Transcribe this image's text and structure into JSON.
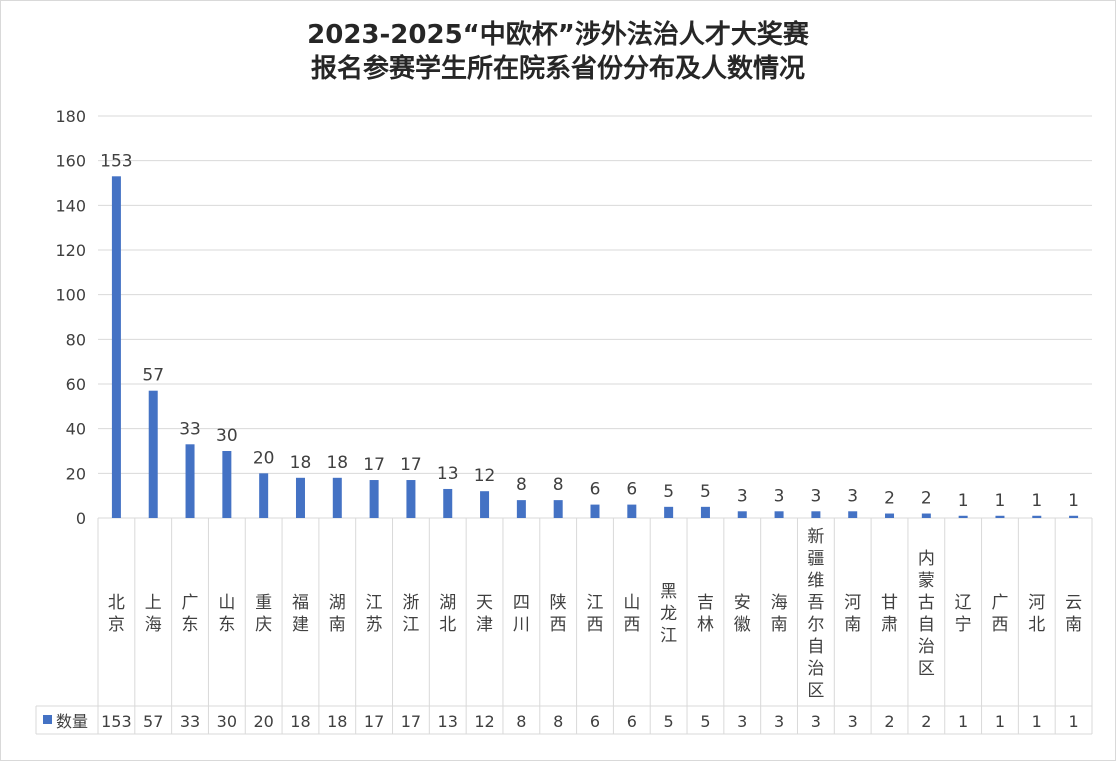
{
  "chart_data": {
    "type": "bar",
    "title": "2023-2025“中欧杯”涉外法治人才大奖赛",
    "subtitle": "报名参赛学生所在院系省份分布及人数情况",
    "categories": [
      "北京",
      "上海",
      "广东",
      "山东",
      "重庆",
      "福建",
      "湖南",
      "江苏",
      "浙江",
      "湖北",
      "天津",
      "四川",
      "陕西",
      "江西",
      "山西",
      "黑龙江",
      "吉林",
      "安徽",
      "海南",
      "新疆维吾尔自治区",
      "河南",
      "甘肃",
      "内蒙古自治区",
      "辽宁",
      "广西",
      "河北",
      "云南"
    ],
    "series": [
      {
        "name": "数量",
        "values": [
          153,
          57,
          33,
          30,
          20,
          18,
          18,
          17,
          17,
          13,
          12,
          8,
          8,
          6,
          6,
          5,
          5,
          3,
          3,
          3,
          3,
          2,
          2,
          1,
          1,
          1,
          1
        ]
      }
    ],
    "ylim": [
      0,
      180
    ],
    "yticks": [
      0,
      20,
      40,
      60,
      80,
      100,
      120,
      140,
      160,
      180
    ],
    "grid": true,
    "data_table": true,
    "colors": {
      "bar": "#4472c4",
      "grid": "#d9d9d9",
      "text": "#404040"
    }
  }
}
